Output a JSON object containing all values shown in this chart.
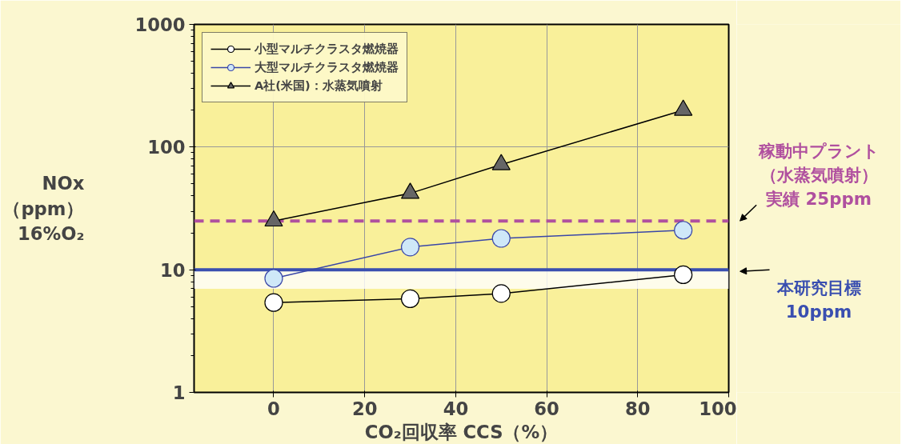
{
  "chart_data": {
    "type": "line",
    "xlabel": "CO₂回収率 CCS（%）",
    "ylabel": "NOx\n（ppm）\n16%O₂",
    "x": [
      0,
      30,
      50,
      90
    ],
    "series": [
      {
        "name": "小型マルチクラスタ燃焼器",
        "color": "#000000",
        "marker": "circle",
        "values": [
          5.4,
          5.8,
          6.4,
          9.1
        ]
      },
      {
        "name": "大型マルチクラスタ燃焼器",
        "color": "#3a47a8",
        "marker": "circle",
        "values": [
          8.5,
          15.3,
          18,
          21
        ]
      },
      {
        "name": "A社(米国)：水蒸気噴射",
        "color": "#000000",
        "marker": "triangle",
        "values": [
          25,
          42,
          72,
          200
        ]
      }
    ],
    "ref_lines": [
      {
        "axis": "y",
        "value": 25,
        "label": "稼動中プラント（水蒸気噴射）実績 25ppm",
        "color": "#b0509f",
        "line_style": "dashed"
      },
      {
        "axis": "y",
        "value": 10,
        "label": "本研究目標10ppm",
        "color": "#3a4fb0",
        "line_style": "solid"
      }
    ],
    "bands": [
      {
        "axis": "y",
        "from": 7,
        "to": 10,
        "color": "#ffffff"
      }
    ],
    "log": true,
    "xlim": [
      -17.5,
      100
    ],
    "ylim": [
      1,
      1000
    ],
    "xticks": [
      0,
      20,
      40,
      60,
      80,
      100
    ],
    "yticks": [
      1,
      10,
      100,
      1000
    ],
    "grid": true,
    "legend": "top left"
  }
}
